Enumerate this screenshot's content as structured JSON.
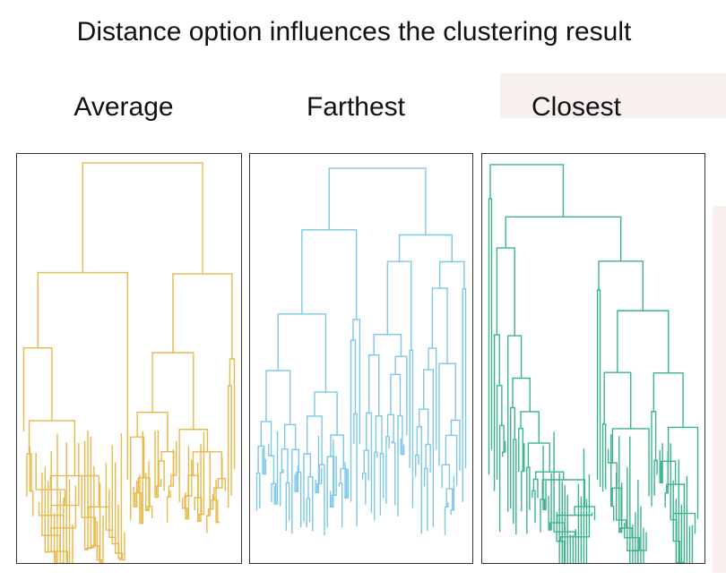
{
  "title": "Distance option influences the clustering result",
  "panels": [
    {
      "label": "Average",
      "color": "#e8b84a",
      "seed": 7
    },
    {
      "label": "Farthest",
      "color": "#7cc7e8",
      "seed": 23
    },
    {
      "label": "Closest",
      "color": "#3bb48a",
      "seed": 91
    }
  ]
}
